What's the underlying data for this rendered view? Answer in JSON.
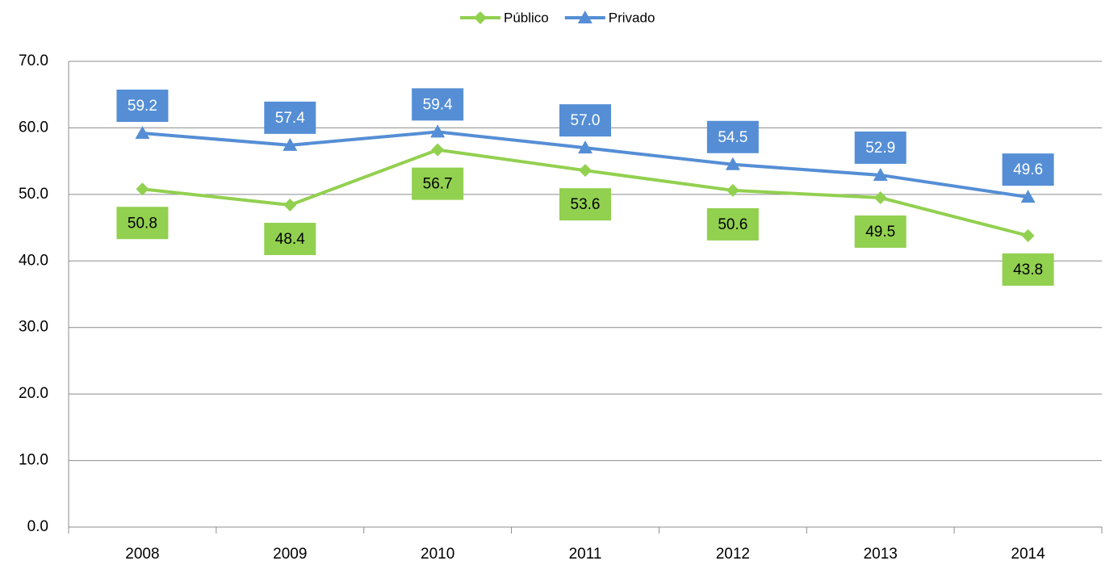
{
  "chart_data": {
    "type": "line",
    "categories": [
      "2008",
      "2009",
      "2010",
      "2011",
      "2012",
      "2013",
      "2014"
    ],
    "series": [
      {
        "name": "Público",
        "color": "#92d050",
        "marker": "diamond",
        "values": [
          50.8,
          48.4,
          56.7,
          53.6,
          50.6,
          49.5,
          43.8
        ]
      },
      {
        "name": "Privado",
        "color": "#558ed5",
        "marker": "triangle",
        "values": [
          59.2,
          57.4,
          59.4,
          57.0,
          54.5,
          52.9,
          49.6
        ],
        "value_labels": [
          "59.2",
          "57.4",
          "59.4",
          "57.0",
          "54.5",
          "52.9",
          "49.6"
        ]
      }
    ],
    "ylim": [
      0,
      70
    ],
    "yticks": [
      {
        "value": 0,
        "label": "0.0"
      },
      {
        "value": 10,
        "label": "10.0"
      },
      {
        "value": 20,
        "label": "20.0"
      },
      {
        "value": 30,
        "label": "30.0"
      },
      {
        "value": 40,
        "label": "40.0"
      },
      {
        "value": 50,
        "label": "50.0"
      },
      {
        "value": 60,
        "label": "60.0"
      },
      {
        "value": 70,
        "label": "70.0"
      }
    ],
    "grid": true,
    "legend": "top"
  }
}
